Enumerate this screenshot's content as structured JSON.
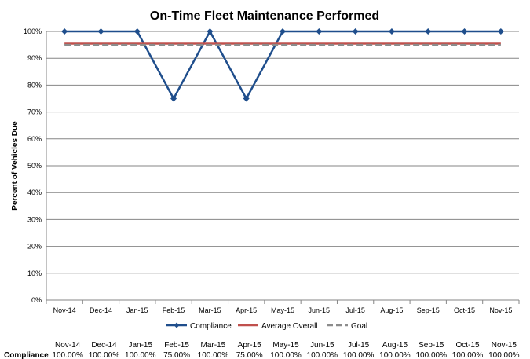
{
  "chart_data": {
    "type": "line",
    "title": "On-Time Fleet Maintenance Performed",
    "ylabel": "Percent of Vehicles Due",
    "xlabel": "",
    "categories": [
      "Nov-14",
      "Dec-14",
      "Jan-15",
      "Feb-15",
      "Mar-15",
      "Apr-15",
      "May-15",
      "Jun-15",
      "Jul-15",
      "Aug-15",
      "Sep-15",
      "Oct-15",
      "Nov-15"
    ],
    "ylim": [
      0,
      100
    ],
    "yticks": [
      0,
      10,
      20,
      30,
      40,
      50,
      60,
      70,
      80,
      90,
      100
    ],
    "ytick_labels": [
      "0%",
      "10%",
      "20%",
      "30%",
      "40%",
      "50%",
      "60%",
      "70%",
      "80%",
      "90%",
      "100%"
    ],
    "grid": true,
    "legend_position": "bottom",
    "series": [
      {
        "name": "Compliance",
        "style": "line-diamond",
        "color": "#1f4e8c",
        "values": [
          100,
          100,
          100,
          75,
          100,
          75,
          100,
          100,
          100,
          100,
          100,
          100,
          100
        ]
      },
      {
        "name": "Average Overall",
        "style": "line",
        "color": "#c0504d",
        "values": [
          95.45,
          95.45,
          95.45,
          95.45,
          95.45,
          95.45,
          95.45,
          95.45,
          95.45,
          95.45,
          95.45,
          95.45,
          95.45
        ]
      },
      {
        "name": "Goal",
        "style": "dashed",
        "color": "#8c8c8c",
        "values": [
          95,
          95,
          95,
          95,
          95,
          95,
          95,
          95,
          95,
          95,
          95,
          95,
          95
        ]
      }
    ],
    "data_table": {
      "row_label": "Compliance",
      "header": [
        "Nov-14",
        "Dec-14",
        "Jan-15",
        "Feb-15",
        "Mar-15",
        "Apr-15",
        "May-15",
        "Jun-15",
        "Jul-15",
        "Aug-15",
        "Sep-15",
        "Oct-15",
        "Nov-15"
      ],
      "values": [
        "100.00%",
        "100.00%",
        "100.00%",
        "75.00%",
        "100.00%",
        "75.00%",
        "100.00%",
        "100.00%",
        "100.00%",
        "100.00%",
        "100.00%",
        "100.00%",
        "100.00%"
      ]
    }
  }
}
